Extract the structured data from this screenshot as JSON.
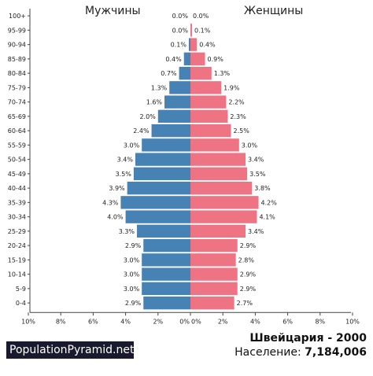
{
  "headers": {
    "male": "Мужчины",
    "female": "Женщины"
  },
  "footer": {
    "brand": "PopulationPyramid.net",
    "country_year": "Швейцария - 2000",
    "population_label": "Население:",
    "population_value": "7,184,006"
  },
  "colors": {
    "male": "#4682b4",
    "female": "#ee7383"
  },
  "chart_data": {
    "type": "bar",
    "orientation": "horizontal-pyramid",
    "categories": [
      "100+",
      "95-99",
      "90-94",
      "85-89",
      "80-84",
      "75-79",
      "70-74",
      "65-69",
      "60-64",
      "55-59",
      "50-54",
      "45-49",
      "40-44",
      "35-39",
      "30-34",
      "25-29",
      "20-24",
      "15-19",
      "10-14",
      "5-9",
      "0-4"
    ],
    "series": [
      {
        "name": "Мужчины",
        "values": [
          0.0,
          0.0,
          0.1,
          0.4,
          0.7,
          1.3,
          1.6,
          2.0,
          2.4,
          3.0,
          3.4,
          3.5,
          3.9,
          4.3,
          4.0,
          3.3,
          2.9,
          3.0,
          3.0,
          3.0,
          2.9
        ]
      },
      {
        "name": "Женщины",
        "values": [
          0.0,
          0.1,
          0.4,
          0.9,
          1.3,
          1.9,
          2.2,
          2.3,
          2.5,
          3.0,
          3.4,
          3.5,
          3.8,
          4.2,
          4.1,
          3.4,
          2.9,
          2.8,
          2.9,
          2.9,
          2.7
        ]
      }
    ],
    "xlim": [
      -10,
      10
    ],
    "x_ticks": [
      "10%",
      "8%",
      "6%",
      "4%",
      "2%",
      "0%",
      "0%",
      "2%",
      "4%",
      "6%",
      "8%",
      "10%"
    ],
    "grid": false
  }
}
